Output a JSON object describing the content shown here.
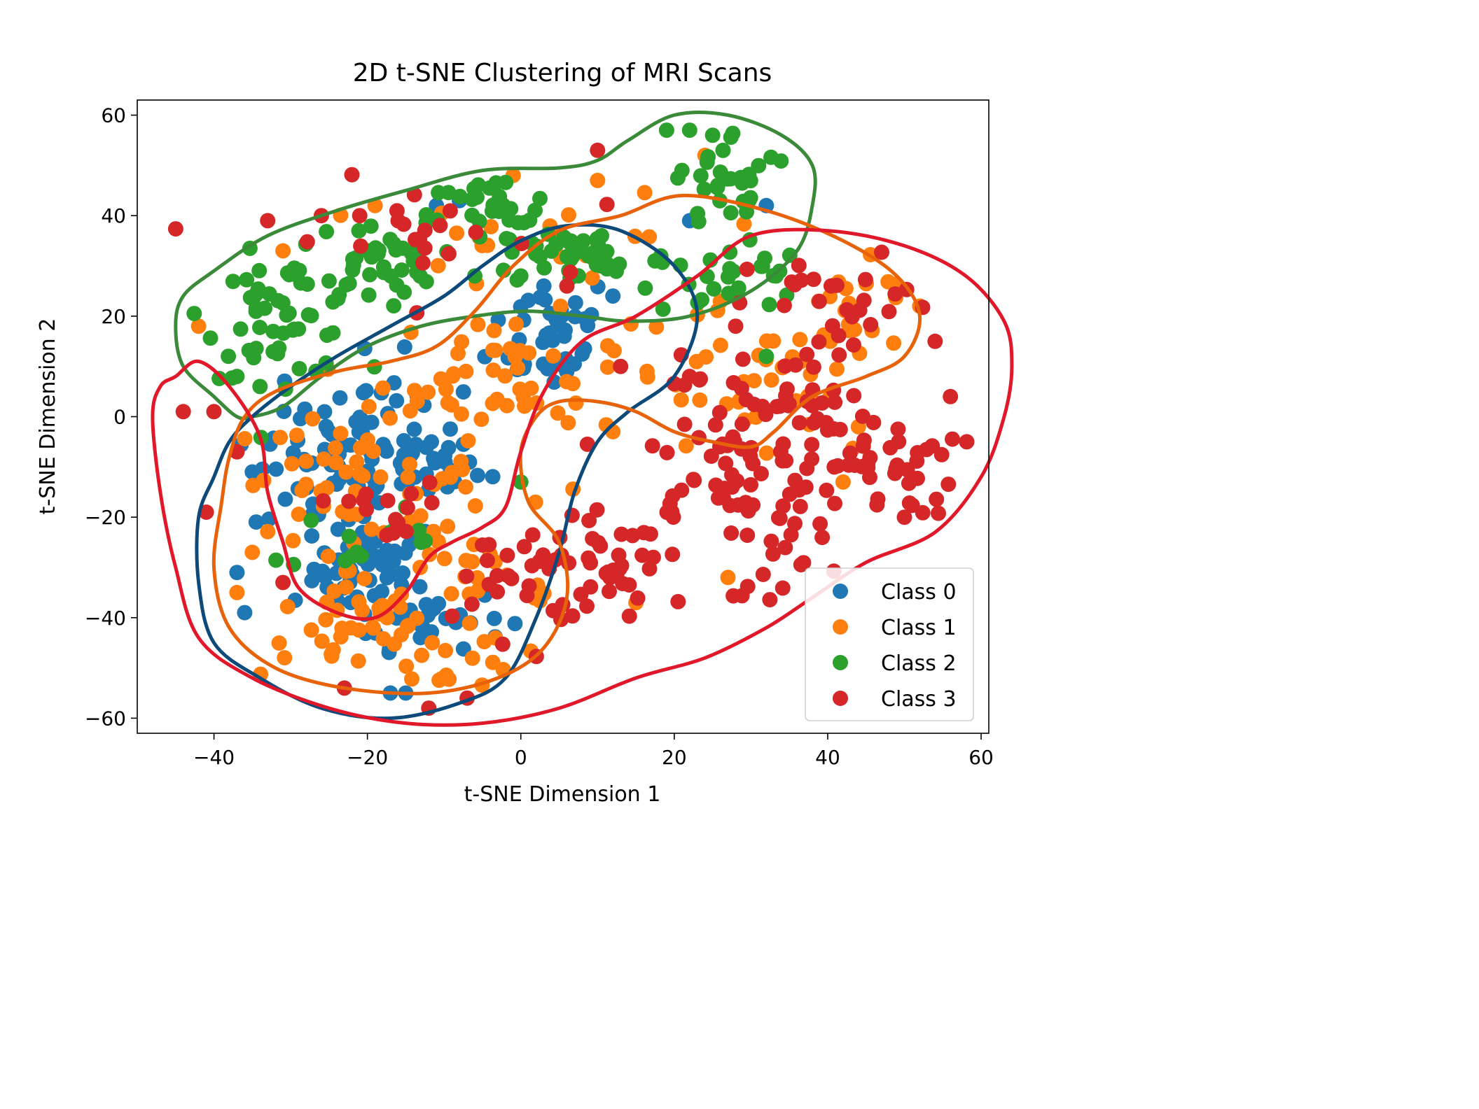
{
  "chart_data": {
    "type": "scatter",
    "title": "2D t-SNE Clustering of MRI Scans",
    "xlabel": "t-SNE Dimension 1",
    "ylabel": "t-SNE Dimension 2",
    "xlim": [
      -50,
      61
    ],
    "ylim": [
      -63,
      63
    ],
    "xticks": [
      -40,
      -20,
      0,
      20,
      40,
      60
    ],
    "yticks": [
      -60,
      -40,
      -20,
      0,
      20,
      40,
      60
    ],
    "tick_labels_x": [
      "−40",
      "−20",
      "0",
      "20",
      "40",
      "60"
    ],
    "tick_labels_y": [
      "−60",
      "−40",
      "−20",
      "0",
      "20",
      "40",
      "60"
    ],
    "grid": false,
    "legend_position": "lower-right",
    "series": [
      {
        "name": "Class 0",
        "color": "#1f77b4",
        "clusters": [
          {
            "cx": -19,
            "cy": -30,
            "sx": 4,
            "sy": 5,
            "n": 55
          },
          {
            "cx": -12,
            "cy": -10,
            "sx": 3,
            "sy": 3,
            "n": 25
          },
          {
            "cx": -25,
            "cy": -12,
            "sx": 5,
            "sy": 6,
            "n": 45
          },
          {
            "cx": 4,
            "cy": 17,
            "sx": 4,
            "sy": 6,
            "n": 40
          },
          {
            "cx": -12,
            "cy": -40,
            "sx": 5,
            "sy": 3,
            "n": 25
          },
          {
            "cx": -20,
            "cy": 0,
            "sx": 6,
            "sy": 6,
            "n": 30
          }
        ],
        "points": [
          [
            -8,
            43
          ],
          [
            -11,
            42
          ],
          [
            22,
            39
          ],
          [
            32,
            42
          ],
          [
            12,
            24
          ],
          [
            3,
            26
          ],
          [
            -35,
            -11
          ],
          [
            -37,
            -31
          ],
          [
            -36,
            -39
          ],
          [
            -15,
            -55
          ],
          [
            -17,
            -55
          ]
        ]
      },
      {
        "name": "Class 1",
        "color": "#ff7f0e",
        "clusters": [
          {
            "cx": -2,
            "cy": 8,
            "sx": 8,
            "sy": 6,
            "n": 50
          },
          {
            "cx": -22,
            "cy": -12,
            "sx": 8,
            "sy": 6,
            "n": 50
          },
          {
            "cx": -22,
            "cy": -42,
            "sx": 6,
            "sy": 5,
            "n": 35
          },
          {
            "cx": -6,
            "cy": -30,
            "sx": 8,
            "sy": 10,
            "n": 35
          },
          {
            "cx": 30,
            "cy": 6,
            "sx": 9,
            "sy": 8,
            "n": 40
          },
          {
            "cx": 44,
            "cy": 20,
            "sx": 5,
            "sy": 5,
            "n": 20
          },
          {
            "cx": 5,
            "cy": 35,
            "sx": 10,
            "sy": 5,
            "n": 20
          },
          {
            "cx": -10,
            "cy": -48,
            "sx": 5,
            "sy": 3,
            "n": 15
          }
        ],
        "points": [
          [
            -42,
            18
          ],
          [
            -31,
            33
          ],
          [
            -19,
            42
          ],
          [
            -1,
            48
          ],
          [
            10,
            47
          ],
          [
            24,
            52
          ],
          [
            52,
            22
          ],
          [
            44,
            -2
          ],
          [
            42,
            -13
          ],
          [
            12,
            -3
          ],
          [
            15,
            -37
          ],
          [
            27,
            -32
          ],
          [
            -37,
            -35
          ],
          [
            -35,
            -27
          ]
        ]
      },
      {
        "name": "Class 2",
        "color": "#2ca02c",
        "clusters": [
          {
            "cx": -31,
            "cy": 20,
            "sx": 5,
            "sy": 6,
            "n": 55
          },
          {
            "cx": -19,
            "cy": 31,
            "sx": 4,
            "sy": 4,
            "n": 35
          },
          {
            "cx": -4,
            "cy": 40,
            "sx": 4,
            "sy": 4,
            "n": 30
          },
          {
            "cx": 8,
            "cy": 32,
            "sx": 6,
            "sy": 3,
            "n": 45
          },
          {
            "cx": 28,
            "cy": 47,
            "sx": 4,
            "sy": 5,
            "n": 30
          },
          {
            "cx": 27,
            "cy": 28,
            "sx": 5,
            "sy": 4,
            "n": 25
          },
          {
            "cx": -22,
            "cy": -25,
            "sx": 4,
            "sy": 3,
            "n": 10
          }
        ],
        "points": [
          [
            19,
            57
          ],
          [
            22,
            57
          ],
          [
            25,
            56
          ],
          [
            21,
            49
          ],
          [
            -14,
            31
          ],
          [
            -25,
            27
          ],
          [
            0,
            28
          ],
          [
            -6,
            28
          ],
          [
            -13,
            -25
          ],
          [
            -17,
            -23
          ],
          [
            -15,
            -18
          ],
          [
            0,
            -13
          ],
          [
            32,
            12
          ],
          [
            -37,
            8
          ],
          [
            -34,
            6
          ]
        ]
      },
      {
        "name": "Class 3",
        "color": "#d62728",
        "clusters": [
          {
            "cx": 27,
            "cy": -12,
            "sx": 7,
            "sy": 6,
            "n": 55
          },
          {
            "cx": 47,
            "cy": -10,
            "sx": 5,
            "sy": 5,
            "n": 40
          },
          {
            "cx": 33,
            "cy": 4,
            "sx": 6,
            "sy": 6,
            "n": 40
          },
          {
            "cx": 42,
            "cy": 22,
            "sx": 6,
            "sy": 5,
            "n": 25
          },
          {
            "cx": 14,
            "cy": -30,
            "sx": 6,
            "sy": 6,
            "n": 35
          },
          {
            "cx": 0,
            "cy": -32,
            "sx": 4,
            "sy": 6,
            "n": 30
          },
          {
            "cx": 35,
            "cy": -28,
            "sx": 4,
            "sy": 4,
            "n": 15
          },
          {
            "cx": -18,
            "cy": -18,
            "sx": 4,
            "sy": 3,
            "n": 15
          },
          {
            "cx": -15,
            "cy": 35,
            "sx": 10,
            "sy": 6,
            "n": 20
          }
        ],
        "points": [
          [
            -44,
            1
          ],
          [
            -40,
            1
          ],
          [
            -33,
            39
          ],
          [
            -26,
            40
          ],
          [
            -21,
            40
          ],
          [
            -16,
            39
          ],
          [
            10,
            53
          ],
          [
            -31,
            -33
          ],
          [
            -23,
            -54
          ],
          [
            -12,
            -58
          ],
          [
            -7,
            -56
          ],
          [
            56,
            4
          ],
          [
            54,
            15
          ],
          [
            50,
            -20
          ],
          [
            -41,
            -19
          ],
          [
            -37,
            -7
          ],
          [
            13,
            10
          ],
          [
            6,
            26
          ],
          [
            22,
            8
          ],
          [
            28,
            18
          ]
        ]
      }
    ],
    "contours": [
      {
        "class": "Class 2",
        "color": "#3a8a3a",
        "path": [
          [
            -37,
            0
          ],
          [
            -40,
            4
          ],
          [
            -44,
            10
          ],
          [
            -45,
            18
          ],
          [
            -44,
            24
          ],
          [
            -40,
            29
          ],
          [
            -33,
            36
          ],
          [
            -24,
            41
          ],
          [
            -15,
            45
          ],
          [
            -5,
            49
          ],
          [
            5,
            49.5
          ],
          [
            10,
            51
          ],
          [
            14,
            55
          ],
          [
            20,
            60
          ],
          [
            27,
            60
          ],
          [
            34,
            56
          ],
          [
            38,
            50
          ],
          [
            38,
            42
          ],
          [
            36,
            33
          ],
          [
            30,
            25
          ],
          [
            22,
            20
          ],
          [
            14,
            19
          ],
          [
            8,
            20
          ],
          [
            1,
            21
          ],
          [
            -6,
            20
          ],
          [
            -13,
            18
          ],
          [
            -20,
            14
          ],
          [
            -26,
            8
          ],
          [
            -31,
            2
          ],
          [
            -35,
            0
          ],
          [
            -37,
            0
          ]
        ]
      },
      {
        "class": "Class 0",
        "color": "#0d4a7a",
        "path": [
          [
            -38,
            -5
          ],
          [
            -35,
            0
          ],
          [
            -30,
            6
          ],
          [
            -24,
            12
          ],
          [
            -17,
            18
          ],
          [
            -10,
            24
          ],
          [
            -5,
            30
          ],
          [
            0,
            35
          ],
          [
            6,
            38
          ],
          [
            13,
            37
          ],
          [
            20,
            30
          ],
          [
            23,
            20
          ],
          [
            20,
            8
          ],
          [
            14,
            1
          ],
          [
            10,
            -5
          ],
          [
            7,
            -15
          ],
          [
            5,
            -27
          ],
          [
            2,
            -40
          ],
          [
            -2,
            -52
          ],
          [
            -8,
            -57
          ],
          [
            -17,
            -60
          ],
          [
            -26,
            -58
          ],
          [
            -34,
            -52
          ],
          [
            -40,
            -45
          ],
          [
            -42,
            -33
          ],
          [
            -42,
            -20
          ],
          [
            -40,
            -12
          ],
          [
            -38,
            -5
          ]
        ]
      },
      {
        "class": "Class 1",
        "color": "#e8620a",
        "path": [
          [
            -36,
            0
          ],
          [
            -32,
            5
          ],
          [
            -24,
            9
          ],
          [
            -17,
            11
          ],
          [
            -11,
            14
          ],
          [
            -6,
            21
          ],
          [
            -1,
            30
          ],
          [
            5,
            37
          ],
          [
            13,
            40
          ],
          [
            21,
            44
          ],
          [
            32,
            41
          ],
          [
            42,
            35
          ],
          [
            49,
            28
          ],
          [
            52,
            20
          ],
          [
            50,
            12
          ],
          [
            45,
            8
          ],
          [
            38,
            4
          ],
          [
            33,
            -3
          ],
          [
            30,
            -6
          ],
          [
            25,
            -5
          ],
          [
            20,
            -3
          ],
          [
            15,
            1
          ],
          [
            10,
            3
          ],
          [
            5,
            3
          ],
          [
            2,
            0
          ],
          [
            0,
            -7
          ],
          [
            1,
            -17
          ],
          [
            5,
            -25
          ],
          [
            6,
            -36
          ],
          [
            3,
            -46
          ],
          [
            -3,
            -52
          ],
          [
            -12,
            -55
          ],
          [
            -23,
            -54
          ],
          [
            -32,
            -50
          ],
          [
            -38,
            -42
          ],
          [
            -40,
            -30
          ],
          [
            -39,
            -17
          ],
          [
            -38,
            -8
          ],
          [
            -36,
            0
          ]
        ]
      },
      {
        "class": "Class 3",
        "color": "#e0182a",
        "path": [
          [
            -47,
            6
          ],
          [
            -48,
            0
          ],
          [
            -47,
            -15
          ],
          [
            -45,
            -30
          ],
          [
            -42,
            -44
          ],
          [
            -35,
            -52
          ],
          [
            -25,
            -58
          ],
          [
            -15,
            -61
          ],
          [
            -5,
            -61
          ],
          [
            5,
            -58
          ],
          [
            15,
            -52
          ],
          [
            24,
            -48
          ],
          [
            32,
            -42
          ],
          [
            38,
            -36
          ],
          [
            45,
            -29
          ],
          [
            54,
            -23
          ],
          [
            60,
            -12
          ],
          [
            63,
            0
          ],
          [
            64,
            10
          ],
          [
            63,
            19
          ],
          [
            58,
            28
          ],
          [
            50,
            34
          ],
          [
            40,
            37
          ],
          [
            30,
            36
          ],
          [
            23,
            28
          ],
          [
            15,
            20
          ],
          [
            8,
            15
          ],
          [
            3,
            5
          ],
          [
            0,
            -7
          ],
          [
            -2,
            -18
          ],
          [
            -5,
            -22
          ],
          [
            -9,
            -25
          ],
          [
            -12,
            -28
          ],
          [
            -15,
            -35
          ],
          [
            -19,
            -40
          ],
          [
            -24,
            -39
          ],
          [
            -29,
            -34
          ],
          [
            -31,
            -25
          ],
          [
            -33,
            -15
          ],
          [
            -34,
            -4
          ],
          [
            -38,
            6
          ],
          [
            -42,
            11
          ],
          [
            -45,
            8
          ],
          [
            -47,
            6
          ]
        ]
      }
    ]
  }
}
